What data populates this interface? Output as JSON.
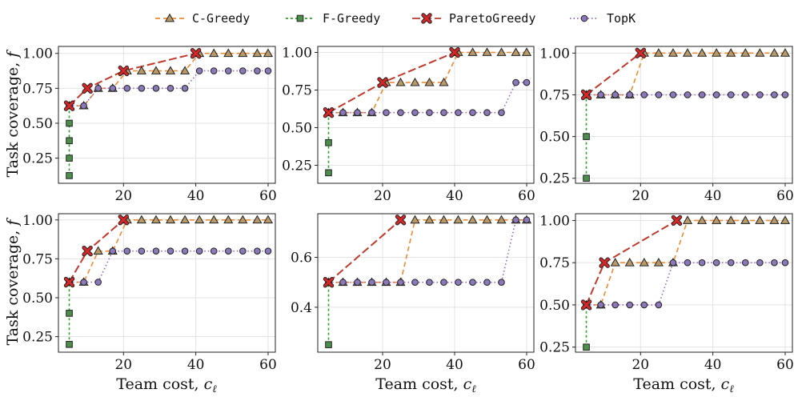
{
  "chart_data": {
    "type": "line",
    "layout": "2x3 grid",
    "xlabel_prefix": "Team cost, ",
    "xlabel_symbol": "c",
    "xlabel_subscript": "ℓ",
    "ylabel_prefix": "Task coverage, ",
    "ylabel_symbol": "f",
    "legend": {
      "position": "top-center",
      "entries": [
        {
          "key": "cgreedy",
          "label": "C-Greedy",
          "color": "#f08a30",
          "marker": "triangle",
          "fill": "#b89a6a",
          "dash": "6,4"
        },
        {
          "key": "fgreedy",
          "label": "F-Greedy",
          "color": "#2ca02c",
          "marker": "square",
          "fill": "#4c8f4c",
          "dash": "3,3"
        },
        {
          "key": "pareto",
          "label": "ParetoGreedy",
          "color": "#c0392b",
          "marker": "x",
          "fill": "#d62728",
          "dash": "10,4"
        },
        {
          "key": "topk",
          "label": "TopK",
          "color": "#9467bd",
          "marker": "circle",
          "fill": "#8a78b8",
          "dash": "1.5,3"
        }
      ]
    },
    "panels": [
      {
        "xlim": [
          2,
          62
        ],
        "ylim": [
          0.07,
          1.05
        ],
        "xticks": [
          20,
          40,
          60
        ],
        "yticks": [
          0.25,
          0.5,
          0.75,
          1.0
        ],
        "xtick_labels": [
          "20",
          "40",
          "60"
        ],
        "ytick_labels": [
          "0.25",
          "0.50",
          "0.75",
          "1.00"
        ],
        "series": {
          "fgreedy": [
            [
              5,
              0.125
            ],
            [
              5,
              0.25
            ],
            [
              5,
              0.375
            ],
            [
              5,
              0.5
            ],
            [
              5,
              0.625
            ]
          ],
          "cgreedy": [
            [
              5,
              0.625
            ],
            [
              9,
              0.625
            ],
            [
              13,
              0.75
            ],
            [
              17,
              0.75
            ],
            [
              21,
              0.875
            ],
            [
              25,
              0.875
            ],
            [
              29,
              0.875
            ],
            [
              33,
              0.875
            ],
            [
              37,
              0.875
            ],
            [
              41,
              1.0
            ],
            [
              45,
              1.0
            ],
            [
              49,
              1.0
            ],
            [
              53,
              1.0
            ],
            [
              57,
              1.0
            ],
            [
              60,
              1.0
            ]
          ],
          "pareto": [
            [
              5,
              0.625
            ],
            [
              10,
              0.75
            ],
            [
              20,
              0.875
            ],
            [
              40,
              1.0
            ]
          ],
          "topk": [
            [
              5,
              0.625
            ],
            [
              9,
              0.625
            ],
            [
              13,
              0.75
            ],
            [
              17,
              0.75
            ],
            [
              21,
              0.75
            ],
            [
              25,
              0.75
            ],
            [
              29,
              0.75
            ],
            [
              33,
              0.75
            ],
            [
              37,
              0.75
            ],
            [
              41,
              0.875
            ],
            [
              45,
              0.875
            ],
            [
              49,
              0.875
            ],
            [
              53,
              0.875
            ],
            [
              57,
              0.875
            ],
            [
              60,
              0.875
            ]
          ]
        }
      },
      {
        "xlim": [
          2,
          62
        ],
        "ylim": [
          0.13,
          1.04
        ],
        "xticks": [
          20,
          40,
          60
        ],
        "yticks": [
          0.25,
          0.5,
          0.75,
          1.0
        ],
        "xtick_labels": [
          "20",
          "40",
          "60"
        ],
        "ytick_labels": [
          "0.25",
          "0.50",
          "0.75",
          "1.00"
        ],
        "series": {
          "fgreedy": [
            [
              5,
              0.2
            ],
            [
              5,
              0.4
            ],
            [
              5,
              0.6
            ]
          ],
          "cgreedy": [
            [
              5,
              0.6
            ],
            [
              9,
              0.6
            ],
            [
              13,
              0.6
            ],
            [
              17,
              0.6
            ],
            [
              21,
              0.8
            ],
            [
              25,
              0.8
            ],
            [
              29,
              0.8
            ],
            [
              33,
              0.8
            ],
            [
              37,
              0.8
            ],
            [
              41,
              1.0
            ],
            [
              45,
              1.0
            ],
            [
              49,
              1.0
            ],
            [
              53,
              1.0
            ],
            [
              57,
              1.0
            ],
            [
              60,
              1.0
            ]
          ],
          "pareto": [
            [
              5,
              0.6
            ],
            [
              20,
              0.8
            ],
            [
              40,
              1.0
            ]
          ],
          "topk": [
            [
              5,
              0.6
            ],
            [
              9,
              0.6
            ],
            [
              13,
              0.6
            ],
            [
              17,
              0.6
            ],
            [
              21,
              0.6
            ],
            [
              25,
              0.6
            ],
            [
              29,
              0.6
            ],
            [
              33,
              0.6
            ],
            [
              37,
              0.6
            ],
            [
              41,
              0.6
            ],
            [
              45,
              0.6
            ],
            [
              49,
              0.6
            ],
            [
              53,
              0.6
            ],
            [
              57,
              0.8
            ],
            [
              60,
              0.8
            ]
          ]
        }
      },
      {
        "xlim": [
          2,
          62
        ],
        "ylim": [
          0.22,
          1.04
        ],
        "xticks": [
          20,
          40,
          60
        ],
        "yticks": [
          0.25,
          0.5,
          0.75,
          1.0
        ],
        "xtick_labels": [
          "20",
          "40",
          "60"
        ],
        "ytick_labels": [
          "0.25",
          "0.50",
          "0.75",
          "1.00"
        ],
        "series": {
          "fgreedy": [
            [
              5,
              0.25
            ],
            [
              5,
              0.5
            ],
            [
              5,
              0.75
            ]
          ],
          "cgreedy": [
            [
              5,
              0.75
            ],
            [
              9,
              0.75
            ],
            [
              13,
              0.75
            ],
            [
              17,
              0.75
            ],
            [
              21,
              1.0
            ],
            [
              25,
              1.0
            ],
            [
              29,
              1.0
            ],
            [
              33,
              1.0
            ],
            [
              37,
              1.0
            ],
            [
              41,
              1.0
            ],
            [
              45,
              1.0
            ],
            [
              49,
              1.0
            ],
            [
              53,
              1.0
            ],
            [
              57,
              1.0
            ],
            [
              60,
              1.0
            ]
          ],
          "pareto": [
            [
              5,
              0.75
            ],
            [
              20,
              1.0
            ]
          ],
          "topk": [
            [
              5,
              0.75
            ],
            [
              9,
              0.75
            ],
            [
              13,
              0.75
            ],
            [
              17,
              0.75
            ],
            [
              21,
              0.75
            ],
            [
              25,
              0.75
            ],
            [
              29,
              0.75
            ],
            [
              33,
              0.75
            ],
            [
              37,
              0.75
            ],
            [
              41,
              0.75
            ],
            [
              45,
              0.75
            ],
            [
              49,
              0.75
            ],
            [
              53,
              0.75
            ],
            [
              57,
              0.75
            ],
            [
              60,
              0.75
            ]
          ]
        }
      },
      {
        "xlim": [
          2,
          62
        ],
        "ylim": [
          0.15,
          1.04
        ],
        "xticks": [
          20,
          40,
          60
        ],
        "yticks": [
          0.25,
          0.5,
          0.75,
          1.0
        ],
        "xtick_labels": [
          "20",
          "40",
          "60"
        ],
        "ytick_labels": [
          "0.25",
          "0.50",
          "0.75",
          "1.00"
        ],
        "series": {
          "fgreedy": [
            [
              5,
              0.2
            ],
            [
              5,
              0.4
            ],
            [
              5,
              0.6
            ]
          ],
          "cgreedy": [
            [
              5,
              0.6
            ],
            [
              9,
              0.6
            ],
            [
              13,
              0.8
            ],
            [
              17,
              0.8
            ],
            [
              21,
              1.0
            ],
            [
              25,
              1.0
            ],
            [
              29,
              1.0
            ],
            [
              33,
              1.0
            ],
            [
              37,
              1.0
            ],
            [
              41,
              1.0
            ],
            [
              45,
              1.0
            ],
            [
              49,
              1.0
            ],
            [
              53,
              1.0
            ],
            [
              57,
              1.0
            ],
            [
              60,
              1.0
            ]
          ],
          "pareto": [
            [
              5,
              0.6
            ],
            [
              10,
              0.8
            ],
            [
              20,
              1.0
            ]
          ],
          "topk": [
            [
              5,
              0.6
            ],
            [
              9,
              0.6
            ],
            [
              13,
              0.6
            ],
            [
              17,
              0.8
            ],
            [
              21,
              0.8
            ],
            [
              25,
              0.8
            ],
            [
              29,
              0.8
            ],
            [
              33,
              0.8
            ],
            [
              37,
              0.8
            ],
            [
              41,
              0.8
            ],
            [
              45,
              0.8
            ],
            [
              49,
              0.8
            ],
            [
              53,
              0.8
            ],
            [
              57,
              0.8
            ],
            [
              60,
              0.8
            ]
          ]
        }
      },
      {
        "xlim": [
          2,
          62
        ],
        "ylim": [
          0.22,
          0.775
        ],
        "xticks": [
          20,
          40,
          60
        ],
        "yticks": [
          0.4,
          0.6
        ],
        "xtick_labels": [
          "20",
          "40",
          "60"
        ],
        "ytick_labels": [
          "0.4",
          "0.6"
        ],
        "series": {
          "fgreedy": [
            [
              5,
              0.25
            ],
            [
              5,
              0.5
            ]
          ],
          "cgreedy": [
            [
              5,
              0.5
            ],
            [
              9,
              0.5
            ],
            [
              13,
              0.5
            ],
            [
              17,
              0.5
            ],
            [
              21,
              0.5
            ],
            [
              25,
              0.5
            ],
            [
              29,
              0.75
            ],
            [
              33,
              0.75
            ],
            [
              37,
              0.75
            ],
            [
              41,
              0.75
            ],
            [
              45,
              0.75
            ],
            [
              49,
              0.75
            ],
            [
              53,
              0.75
            ],
            [
              57,
              0.75
            ],
            [
              60,
              0.75
            ]
          ],
          "pareto": [
            [
              5,
              0.5
            ],
            [
              25,
              0.75
            ]
          ],
          "topk": [
            [
              5,
              0.5
            ],
            [
              9,
              0.5
            ],
            [
              13,
              0.5
            ],
            [
              17,
              0.5
            ],
            [
              21,
              0.5
            ],
            [
              25,
              0.5
            ],
            [
              29,
              0.5
            ],
            [
              33,
              0.5
            ],
            [
              37,
              0.5
            ],
            [
              41,
              0.5
            ],
            [
              45,
              0.5
            ],
            [
              49,
              0.5
            ],
            [
              53,
              0.5
            ],
            [
              57,
              0.75
            ],
            [
              60,
              0.75
            ]
          ]
        }
      },
      {
        "xlim": [
          2,
          62
        ],
        "ylim": [
          0.22,
          1.04
        ],
        "xticks": [
          20,
          40,
          60
        ],
        "yticks": [
          0.25,
          0.5,
          0.75,
          1.0
        ],
        "xtick_labels": [
          "20",
          "40",
          "60"
        ],
        "ytick_labels": [
          "0.25",
          "0.50",
          "0.75",
          "1.00"
        ],
        "series": {
          "fgreedy": [
            [
              5,
              0.25
            ],
            [
              5,
              0.5
            ]
          ],
          "cgreedy": [
            [
              5,
              0.5
            ],
            [
              9,
              0.5
            ],
            [
              13,
              0.75
            ],
            [
              17,
              0.75
            ],
            [
              21,
              0.75
            ],
            [
              25,
              0.75
            ],
            [
              29,
              0.75
            ],
            [
              33,
              1.0
            ],
            [
              37,
              1.0
            ],
            [
              41,
              1.0
            ],
            [
              45,
              1.0
            ],
            [
              49,
              1.0
            ],
            [
              53,
              1.0
            ],
            [
              57,
              1.0
            ],
            [
              60,
              1.0
            ]
          ],
          "pareto": [
            [
              5,
              0.5
            ],
            [
              10,
              0.75
            ],
            [
              30,
              1.0
            ]
          ],
          "topk": [
            [
              5,
              0.5
            ],
            [
              9,
              0.5
            ],
            [
              13,
              0.5
            ],
            [
              17,
              0.5
            ],
            [
              21,
              0.5
            ],
            [
              25,
              0.5
            ],
            [
              29,
              0.75
            ],
            [
              33,
              0.75
            ],
            [
              37,
              0.75
            ],
            [
              41,
              0.75
            ],
            [
              45,
              0.75
            ],
            [
              49,
              0.75
            ],
            [
              53,
              0.75
            ],
            [
              57,
              0.75
            ],
            [
              60,
              0.75
            ]
          ]
        }
      }
    ]
  }
}
